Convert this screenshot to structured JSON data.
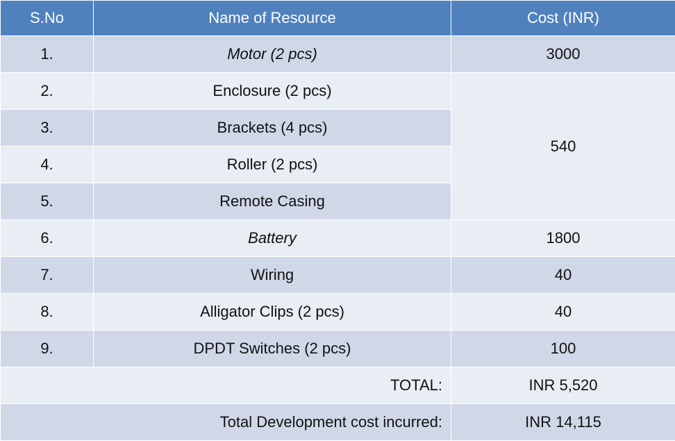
{
  "table": {
    "headers": [
      "S.No",
      "Name of Resource",
      "Cost (INR)"
    ],
    "rows": [
      {
        "sno": "1.",
        "name": "Motor (2 pcs)",
        "cost": "3000"
      },
      {
        "sno": "2.",
        "name": "Enclosure (2 pcs)"
      },
      {
        "sno": "3.",
        "name": "Brackets (4 pcs)"
      },
      {
        "sno": "4.",
        "name": "Roller (2 pcs)"
      },
      {
        "sno": "5.",
        "name": "Remote Casing"
      },
      {
        "sno": "6.",
        "name": "Battery",
        "cost": "1800"
      },
      {
        "sno": "7.",
        "name": "Wiring",
        "cost": "40"
      },
      {
        "sno": "8.",
        "name": "Alligator Clips (2 pcs)",
        "cost": "40"
      },
      {
        "sno": "9.",
        "name": "DPDT Switches (2 pcs)",
        "cost": "100"
      }
    ],
    "grouped_cost": "540",
    "total_label": "TOTAL:",
    "total_value": "INR 5,520",
    "dev_label": "Total Development cost incurred:",
    "dev_value": "INR 14,115"
  },
  "colors": {
    "header": "#4f81bd",
    "row_dark": "#d0d8e8",
    "row_light": "#e9edf4"
  }
}
